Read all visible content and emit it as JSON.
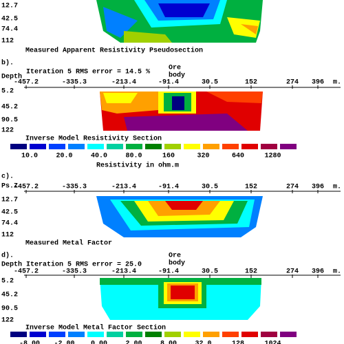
{
  "panel_a": {
    "depth_labels": [
      "12.7",
      "42.5",
      "74.4",
      "112"
    ],
    "caption": "Measured Apparent Resistivity Pseudosection"
  },
  "panel_b": {
    "label": "b).",
    "axis_label": "Depth",
    "rms": "Iteration 5 RMS error = 14.5 %",
    "ore": [
      "Ore",
      "body"
    ],
    "x_labels": [
      "-457.2",
      "-335.3",
      "-213.4",
      "-91.4",
      "30.5",
      "152",
      "274",
      "396"
    ],
    "x_unit": "m.",
    "depth_labels": [
      "5.2",
      "45.2",
      "90.5",
      "122"
    ],
    "caption": "Inverse Model Resistivity Section"
  },
  "resistivity_scale": {
    "labels": [
      "10.0",
      "20.0",
      "40.0",
      "80.0",
      "160",
      "320",
      "640",
      "1280"
    ],
    "title": "Resistivity in ohm.m",
    "colors": [
      "#000080",
      "#0000d0",
      "#0040ff",
      "#0080ff",
      "#00ffff",
      "#00d0a0",
      "#00b040",
      "#008000",
      "#a0d000",
      "#ffff00",
      "#ffa000",
      "#ff4000",
      "#e00000",
      "#a00040",
      "#800080"
    ]
  },
  "panel_c": {
    "label": "c).",
    "axis_label": "Ps.Z",
    "x_labels": [
      "-457.2",
      "-335.3",
      "-213.4",
      "-91.4",
      "30.5",
      "152",
      "274",
      "396"
    ],
    "x_unit": "m.",
    "depth_labels": [
      "12.7",
      "42.5",
      "74.4",
      "112"
    ],
    "caption": "Measured Metal Factor"
  },
  "panel_d": {
    "label": "d).",
    "axis_label": "Depth",
    "rms": "Iteration 5 RMS error = 25.0",
    "ore": [
      "Ore",
      "body"
    ],
    "x_labels": [
      "-457.2",
      "-335.3",
      "-213.4",
      "-91.4",
      "30.5",
      "152",
      "274",
      "396"
    ],
    "x_unit": "m.",
    "depth_labels": [
      "5.2",
      "45.2",
      "90.5",
      "122"
    ],
    "caption": "Inverse Model Metal Factor Section"
  },
  "metal_factor_scale": {
    "labels": [
      "-8.00",
      "-2.00",
      "0.00",
      "2.00",
      "8.00",
      "32.0",
      "128",
      "1024"
    ],
    "colors": [
      "#000080",
      "#0000d0",
      "#0040ff",
      "#0080ff",
      "#00ffff",
      "#00d0a0",
      "#00b040",
      "#008000",
      "#a0d000",
      "#ffff00",
      "#ffa000",
      "#ff4000",
      "#e00000",
      "#a00040",
      "#800080"
    ]
  }
}
